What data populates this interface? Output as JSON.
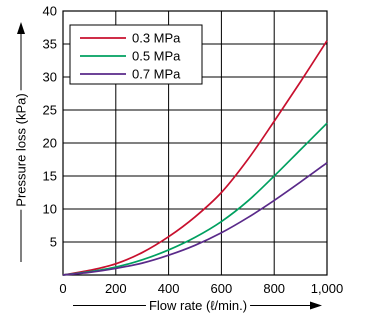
{
  "chart_data": {
    "type": "line",
    "xlabel": "Flow rate (ℓ/min.)",
    "ylabel": "Pressure loss (kPa)",
    "xlim": [
      0,
      1000
    ],
    "ylim": [
      0,
      40
    ],
    "xticks": [
      0,
      200,
      400,
      600,
      800,
      1000
    ],
    "xtick_labels": [
      "0",
      "200",
      "400",
      "600",
      "800",
      "1,000"
    ],
    "yticks": [
      5,
      10,
      15,
      20,
      25,
      30,
      35,
      40
    ],
    "ytick_labels": [
      "5",
      "10",
      "15",
      "20",
      "25",
      "30",
      "35",
      "40"
    ],
    "grid": true,
    "legend": "top-left",
    "series": [
      {
        "name": "0.3 MPa",
        "color": "#c8102e",
        "x": [
          0,
          100,
          200,
          300,
          400,
          500,
          600,
          700,
          800,
          900,
          1000
        ],
        "y": [
          0,
          0.7,
          1.7,
          3.4,
          5.8,
          8.8,
          12.5,
          17.5,
          23.3,
          29.3,
          35.5
        ]
      },
      {
        "name": "0.5 MPa",
        "color": "#00a060",
        "x": [
          0,
          100,
          200,
          300,
          400,
          500,
          600,
          700,
          800,
          900,
          1000
        ],
        "y": [
          0,
          0.5,
          1.2,
          2.3,
          3.8,
          5.7,
          8.1,
          11.2,
          15.0,
          19.0,
          23.0
        ]
      },
      {
        "name": "0.7 MPa",
        "color": "#5a2a8a",
        "x": [
          0,
          100,
          200,
          300,
          400,
          500,
          600,
          700,
          800,
          900,
          1000
        ],
        "y": [
          0,
          0.4,
          1.0,
          1.8,
          3.0,
          4.5,
          6.4,
          8.7,
          11.3,
          14.1,
          17.0
        ]
      }
    ]
  }
}
